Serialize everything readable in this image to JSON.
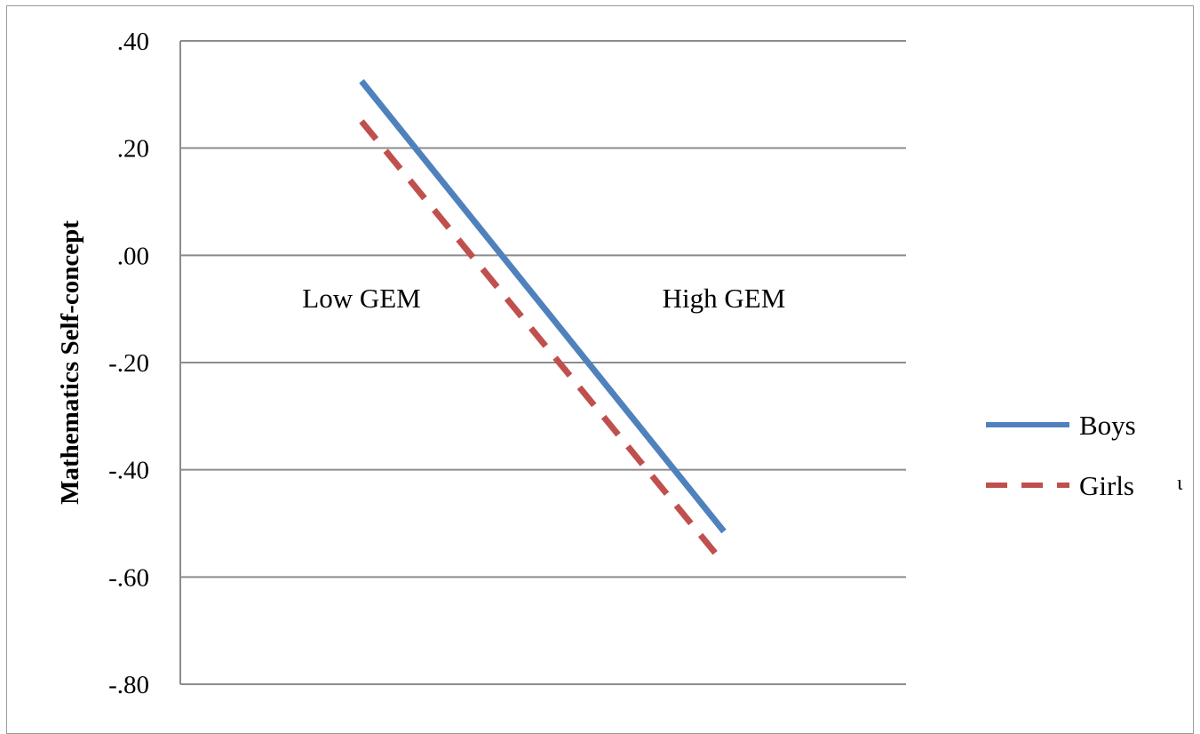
{
  "chart_data": {
    "type": "line",
    "title": "",
    "xlabel": "",
    "ylabel": "Mathematics Self-concept",
    "categories": [
      "Low GEM",
      "High GEM"
    ],
    "yticks": [
      ".40",
      ".20",
      ".00",
      "-.20",
      "-.40",
      "-.60",
      "-.80"
    ],
    "ylim": [
      -0.8,
      0.4
    ],
    "grid": true,
    "legend_position": "right",
    "series": [
      {
        "name": "Boys",
        "values": [
          0.325,
          -0.515
        ],
        "color": "#4f81bd",
        "style": "solid"
      },
      {
        "name": "Girls",
        "values": [
          0.25,
          -0.575
        ],
        "color": "#c0504d",
        "style": "dashed"
      }
    ],
    "stray_mark": "ι"
  }
}
